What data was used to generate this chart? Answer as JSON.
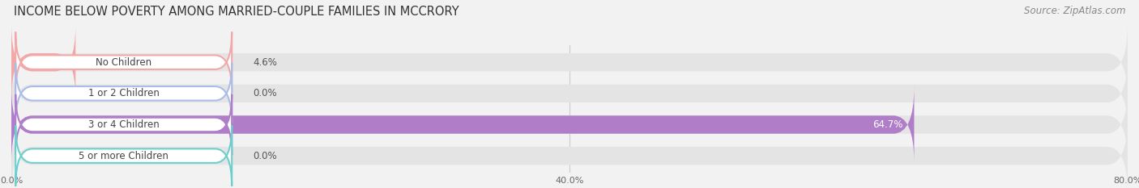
{
  "title": "INCOME BELOW POVERTY AMONG MARRIED-COUPLE FAMILIES IN MCCRORY",
  "source": "Source: ZipAtlas.com",
  "categories": [
    "No Children",
    "1 or 2 Children",
    "3 or 4 Children",
    "5 or more Children"
  ],
  "values": [
    4.6,
    0.0,
    64.7,
    0.0
  ],
  "bar_colors": [
    "#f2a8a8",
    "#aabde8",
    "#b07ec8",
    "#6ecece"
  ],
  "bg_color": "#f2f2f2",
  "bar_bg_color": "#e4e4e4",
  "label_bg_color": "#ffffff",
  "xlim": [
    0,
    80
  ],
  "xticks": [
    0.0,
    40.0,
    80.0
  ],
  "xtick_labels": [
    "0.0%",
    "40.0%",
    "80.0%"
  ],
  "title_fontsize": 10.5,
  "source_fontsize": 8.5,
  "label_fontsize": 8.5,
  "value_fontsize": 8.5
}
